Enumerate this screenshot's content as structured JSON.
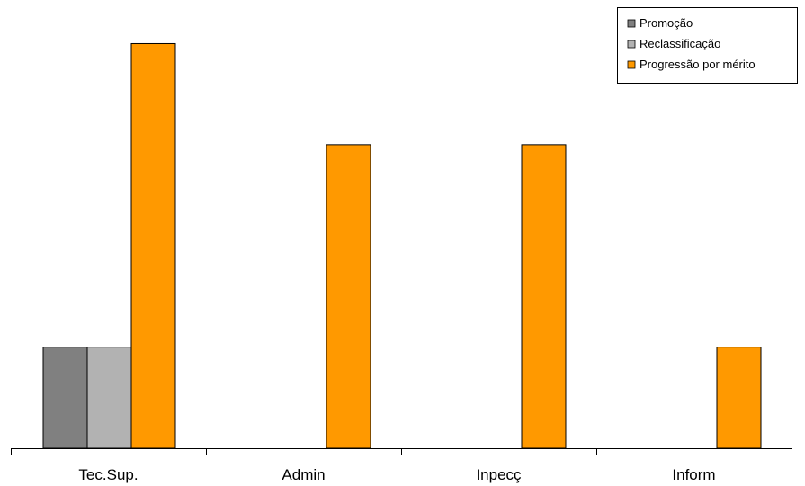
{
  "chart_data": {
    "type": "bar",
    "categories": [
      "Tec.Sup.",
      "Admin",
      "Inpecç",
      "Inform"
    ],
    "series": [
      {
        "name": "Promoção",
        "values": [
          1,
          0,
          0,
          0
        ],
        "color": "#808080"
      },
      {
        "name": "Reclassificação",
        "values": [
          1,
          0,
          0,
          0
        ],
        "color": "#b2b2b2"
      },
      {
        "name": "Progressão por mérito",
        "values": [
          4,
          3,
          3,
          1
        ],
        "color": "#ff9900"
      }
    ],
    "title": "",
    "xlabel": "",
    "ylabel": "",
    "ylim": [
      0,
      4.2
    ],
    "grid": false,
    "legend_position": "top-right",
    "bar_outline_color": "#000000"
  }
}
